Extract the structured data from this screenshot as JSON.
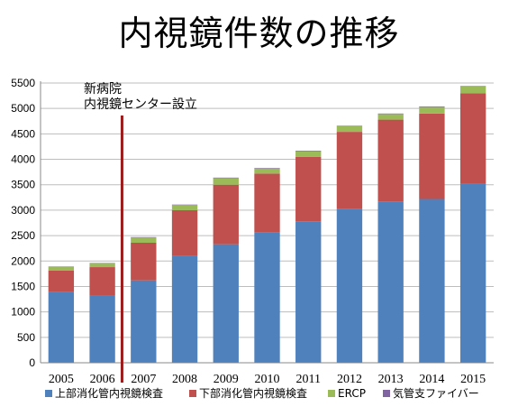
{
  "title": "内視鏡件数の推移",
  "chart_data": {
    "type": "bar",
    "stacked": true,
    "categories": [
      "2005",
      "2006",
      "2007",
      "2008",
      "2009",
      "2010",
      "2011",
      "2012",
      "2013",
      "2014",
      "2015"
    ],
    "series": [
      {
        "name": "上部消化管内視鏡検査",
        "color": "#4f81bd",
        "values": [
          1390,
          1330,
          1620,
          2100,
          2330,
          2560,
          2780,
          3020,
          3170,
          3220,
          3520
        ]
      },
      {
        "name": "下部消化管内視鏡検査",
        "color": "#c0504d",
        "values": [
          420,
          550,
          740,
          900,
          1170,
          1160,
          1270,
          1520,
          1610,
          1680,
          1780
        ]
      },
      {
        "name": "ERCP",
        "color": "#9bbb59",
        "values": [
          70,
          70,
          100,
          100,
          130,
          100,
          110,
          110,
          110,
          130,
          130
        ]
      },
      {
        "name": "気管支ファイバー",
        "color": "#8064a2",
        "values": [
          10,
          10,
          10,
          10,
          10,
          10,
          10,
          10,
          10,
          10,
          10
        ]
      }
    ],
    "ylim": [
      0,
      5500
    ],
    "yticks": [
      0,
      500,
      1000,
      1500,
      2000,
      2500,
      3000,
      3500,
      4000,
      4500,
      5000,
      5500
    ],
    "grid": true,
    "legend": "bottom",
    "annotation": {
      "lines": [
        "新病院",
        "内視鏡センター設立"
      ],
      "position": "between 2006 and 2007",
      "color": "#9b1c1c"
    }
  }
}
